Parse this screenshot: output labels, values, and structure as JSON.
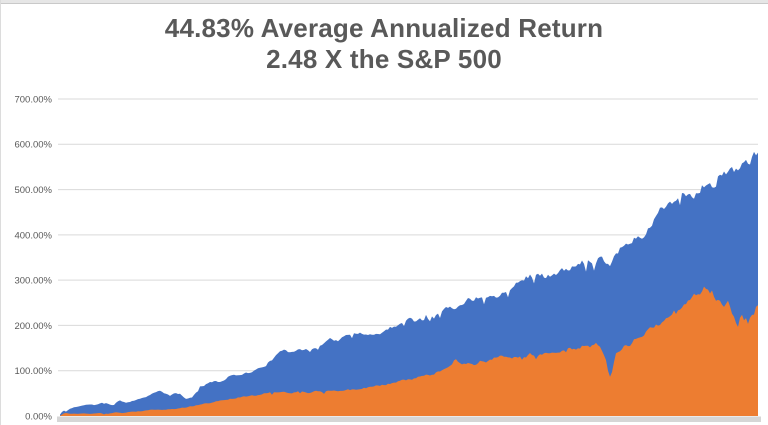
{
  "chart": {
    "title_line1": "44.83% Average Annualized Return",
    "title_line2": "2.48 X the S&P 500"
  },
  "chart_data": {
    "type": "area",
    "title": "44.83% Average Annualized Return",
    "subtitle": "2.48 X the S&P 500",
    "legend": "none",
    "grid": "horizontal",
    "y_axis": {
      "unit": "%",
      "range": [
        0,
        700
      ],
      "ticks": [
        {
          "value": 0,
          "label": "0.00%"
        },
        {
          "value": 100,
          "label": "100.00%"
        },
        {
          "value": 200,
          "label": "200.00%"
        },
        {
          "value": 300,
          "label": "300.00%"
        },
        {
          "value": 400,
          "label": "400.00%"
        },
        {
          "value": 500,
          "label": "500.00%"
        },
        {
          "value": 600,
          "label": "600.00%"
        },
        {
          "value": 700,
          "label": "700.00%"
        }
      ]
    },
    "x_axis": {
      "tick_labels": []
    },
    "series": [
      {
        "id": "blue_area",
        "color": "#4472C4",
        "points": [
          [
            60,
            3
          ],
          [
            63,
            12
          ],
          [
            66,
            10
          ],
          [
            70,
            16
          ],
          [
            75,
            20
          ],
          [
            80,
            22
          ],
          [
            85,
            24
          ],
          [
            90,
            26
          ],
          [
            95,
            24
          ],
          [
            100,
            27
          ],
          [
            105,
            30
          ],
          [
            112,
            24
          ],
          [
            120,
            34
          ],
          [
            126,
            30
          ],
          [
            130,
            32
          ],
          [
            136,
            36
          ],
          [
            140,
            38
          ],
          [
            145,
            42
          ],
          [
            150,
            48
          ],
          [
            155,
            52
          ],
          [
            160,
            55
          ],
          [
            165,
            50
          ],
          [
            170,
            45
          ],
          [
            175,
            49
          ],
          [
            180,
            49
          ],
          [
            185,
            38
          ],
          [
            190,
            40
          ],
          [
            195,
            48
          ],
          [
            200,
            65
          ],
          [
            205,
            69
          ],
          [
            210,
            73
          ],
          [
            215,
            78
          ],
          [
            220,
            76
          ],
          [
            225,
            80
          ],
          [
            230,
            88
          ],
          [
            235,
            91
          ],
          [
            240,
            93
          ],
          [
            245,
            94
          ],
          [
            250,
            97
          ],
          [
            255,
            100
          ],
          [
            260,
            106
          ],
          [
            265,
            112
          ],
          [
            272,
            125
          ],
          [
            278,
            135
          ],
          [
            285,
            148
          ],
          [
            290,
            142
          ],
          [
            300,
            151
          ],
          [
            310,
            142
          ],
          [
            320,
            158
          ],
          [
            330,
            170
          ],
          [
            340,
            168
          ],
          [
            350,
            180
          ],
          [
            357,
            181
          ],
          [
            365,
            185
          ],
          [
            373,
            178
          ],
          [
            380,
            184
          ],
          [
            388,
            192
          ],
          [
            395,
            200
          ],
          [
            400,
            206
          ],
          [
            410,
            215
          ],
          [
            415,
            210
          ],
          [
            420,
            222
          ],
          [
            428,
            228
          ],
          [
            435,
            220
          ],
          [
            440,
            232
          ],
          [
            450,
            240
          ],
          [
            455,
            235
          ],
          [
            460,
            250
          ],
          [
            470,
            258
          ],
          [
            480,
            264
          ],
          [
            490,
            268
          ],
          [
            495,
            262
          ],
          [
            500,
            270
          ],
          [
            510,
            285
          ],
          [
            520,
            300
          ],
          [
            530,
            310
          ],
          [
            540,
            312
          ],
          [
            545,
            307
          ],
          [
            552,
            314
          ],
          [
            560,
            318
          ],
          [
            568,
            322
          ],
          [
            575,
            330
          ],
          [
            582,
            338
          ],
          [
            590,
            344
          ],
          [
            600,
            350
          ],
          [
            605,
            344
          ],
          [
            610,
            338
          ],
          [
            615,
            355
          ],
          [
            620,
            372
          ],
          [
            627,
            382
          ],
          [
            633,
            388
          ],
          [
            640,
            396
          ],
          [
            645,
            405
          ],
          [
            650,
            417
          ],
          [
            655,
            435
          ],
          [
            660,
            455
          ],
          [
            666,
            466
          ],
          [
            672,
            477
          ],
          [
            678,
            482
          ],
          [
            684,
            487
          ],
          [
            690,
            492
          ],
          [
            694,
            486
          ],
          [
            700,
            505
          ],
          [
            706,
            512
          ],
          [
            711,
            516
          ],
          [
            715,
            506
          ],
          [
            720,
            535
          ],
          [
            726,
            538
          ],
          [
            731,
            536
          ],
          [
            736,
            545
          ],
          [
            741,
            557
          ],
          [
            746,
            561
          ],
          [
            751,
            567
          ],
          [
            755,
            572
          ],
          [
            758,
            575
          ]
        ]
      },
      {
        "id": "orange_area",
        "color": "#ED7D31",
        "points": [
          [
            60,
            1
          ],
          [
            64,
            6
          ],
          [
            68,
            8
          ],
          [
            72,
            5
          ],
          [
            78,
            4
          ],
          [
            85,
            6
          ],
          [
            92,
            5
          ],
          [
            100,
            6
          ],
          [
            108,
            5
          ],
          [
            115,
            8
          ],
          [
            122,
            7
          ],
          [
            130,
            9
          ],
          [
            140,
            10
          ],
          [
            150,
            14
          ],
          [
            160,
            13
          ],
          [
            170,
            15
          ],
          [
            180,
            17
          ],
          [
            190,
            21
          ],
          [
            200,
            25
          ],
          [
            210,
            29
          ],
          [
            220,
            33
          ],
          [
            230,
            37
          ],
          [
            240,
            41
          ],
          [
            250,
            44
          ],
          [
            258,
            47
          ],
          [
            265,
            50
          ],
          [
            272,
            51
          ],
          [
            280,
            53
          ],
          [
            290,
            50
          ],
          [
            300,
            54
          ],
          [
            308,
            52
          ],
          [
            315,
            55
          ],
          [
            322,
            54
          ],
          [
            330,
            56
          ],
          [
            338,
            54
          ],
          [
            345,
            57
          ],
          [
            352,
            58
          ],
          [
            360,
            60
          ],
          [
            370,
            64
          ],
          [
            380,
            68
          ],
          [
            390,
            72
          ],
          [
            400,
            77
          ],
          [
            410,
            80
          ],
          [
            420,
            88
          ],
          [
            430,
            91
          ],
          [
            440,
            99
          ],
          [
            450,
            108
          ],
          [
            455,
            124
          ],
          [
            460,
            117
          ],
          [
            465,
            114
          ],
          [
            470,
            118
          ],
          [
            475,
            112
          ],
          [
            480,
            124
          ],
          [
            485,
            120
          ],
          [
            490,
            123
          ],
          [
            495,
            128
          ],
          [
            500,
            132
          ],
          [
            505,
            128
          ],
          [
            510,
            131
          ],
          [
            515,
            129
          ],
          [
            520,
            133
          ],
          [
            526,
            130
          ],
          [
            530,
            136
          ],
          [
            536,
            132
          ],
          [
            541,
            137
          ],
          [
            546,
            140
          ],
          [
            551,
            143
          ],
          [
            556,
            138
          ],
          [
            561,
            142
          ],
          [
            566,
            147
          ],
          [
            571,
            150
          ],
          [
            576,
            146
          ],
          [
            581,
            152
          ],
          [
            586,
            158
          ],
          [
            590,
            153
          ],
          [
            595,
            163
          ],
          [
            600,
            157
          ],
          [
            603,
            140
          ],
          [
            606,
            122
          ],
          [
            609,
            88
          ],
          [
            611,
            86
          ],
          [
            613,
            110
          ],
          [
            616,
            138
          ],
          [
            620,
            144
          ],
          [
            625,
            159
          ],
          [
            630,
            157
          ],
          [
            635,
            173
          ],
          [
            640,
            177
          ],
          [
            645,
            184
          ],
          [
            650,
            192
          ],
          [
            655,
            199
          ],
          [
            660,
            203
          ],
          [
            665,
            210
          ],
          [
            670,
            225
          ],
          [
            675,
            232
          ],
          [
            680,
            237
          ],
          [
            685,
            243
          ],
          [
            690,
            255
          ],
          [
            695,
            266
          ],
          [
            700,
            273
          ],
          [
            704,
            283
          ],
          [
            707,
            280
          ],
          [
            710,
            270
          ],
          [
            713,
            278
          ],
          [
            715,
            255
          ],
          [
            718,
            262
          ],
          [
            720,
            259
          ],
          [
            723,
            245
          ],
          [
            726,
            250
          ],
          [
            728,
            258
          ],
          [
            731,
            230
          ],
          [
            734,
            215
          ],
          [
            736,
            205
          ],
          [
            738,
            199
          ],
          [
            741,
            224
          ],
          [
            744,
            212
          ],
          [
            746,
            217
          ],
          [
            748,
            203
          ],
          [
            751,
            228
          ],
          [
            753,
            221
          ],
          [
            755,
            237
          ],
          [
            758,
            243
          ]
        ]
      }
    ],
    "style": {
      "background": "#FFFFFF",
      "gridline_color": "#D9D9D9",
      "axis_strip_color": "#D6D6D6",
      "title_color": "#595959",
      "tick_label_color": "#595959",
      "noise_base_pct": 1.0,
      "noise_rel": 0.035
    }
  }
}
